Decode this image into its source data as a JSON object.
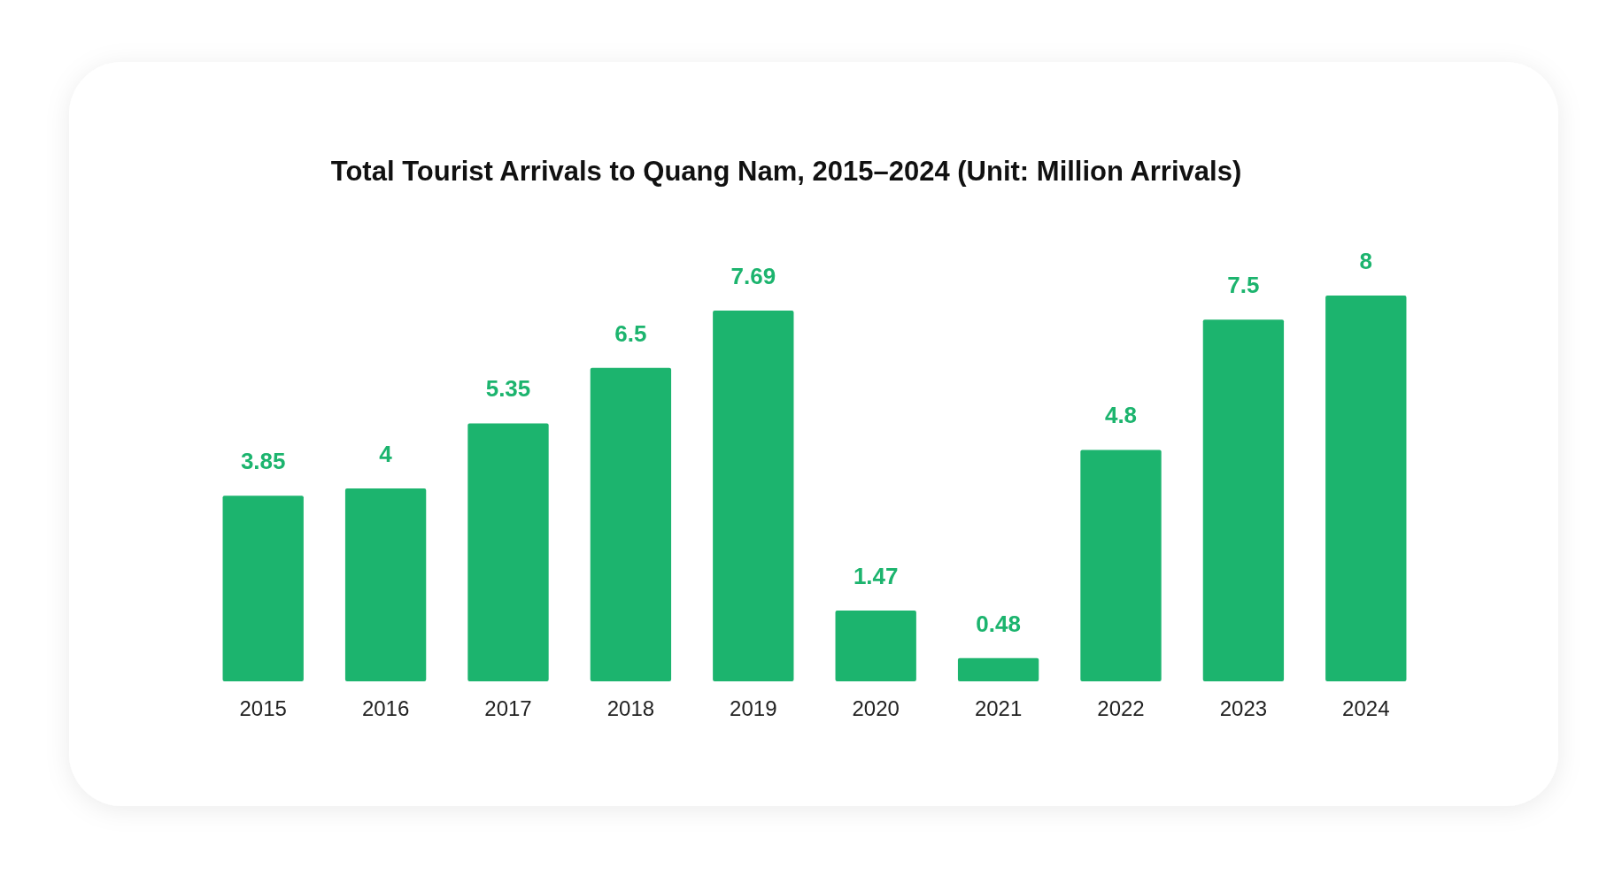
{
  "chart_data": {
    "type": "bar",
    "title": "Total Tourist Arrivals to Quang Nam, 2015–2024 (Unit: Million Arrivals)",
    "categories": [
      "2015",
      "2016",
      "2017",
      "2018",
      "2019",
      "2020",
      "2021",
      "2022",
      "2023",
      "2024"
    ],
    "values": [
      3.85,
      4,
      5.35,
      6.5,
      7.69,
      1.47,
      0.48,
      4.8,
      7.5,
      8
    ],
    "color": "#1cb46e",
    "data_labels": true
  }
}
